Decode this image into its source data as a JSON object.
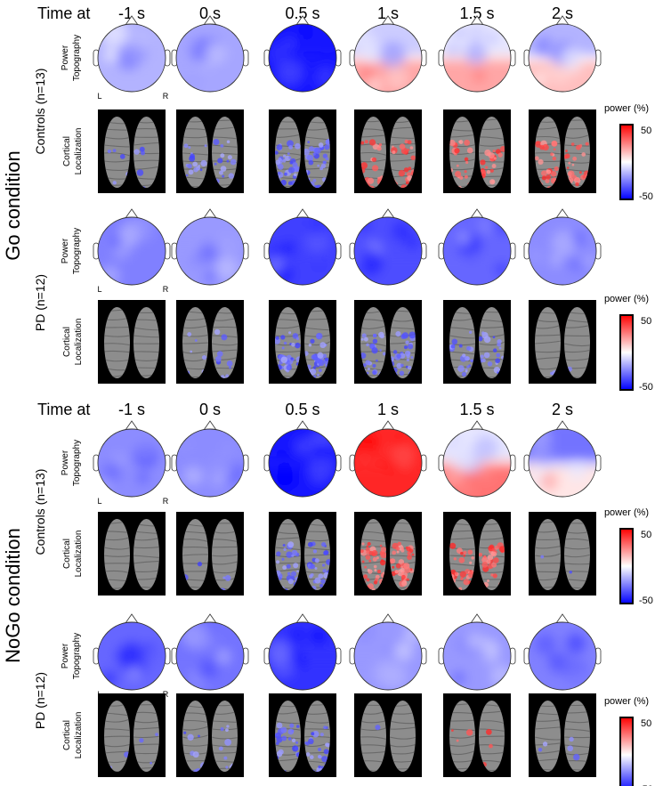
{
  "figure": {
    "time_prefix": "Time at",
    "time_points": [
      "-1 s",
      "0 s",
      "0.5 s",
      "1 s",
      "1.5 s",
      "2 s"
    ],
    "row_labels": {
      "power": [
        "Power",
        "Topography"
      ],
      "cortical": [
        "Cortical",
        "Localization"
      ]
    },
    "hemisphere_labels": {
      "left": "L",
      "right": "R"
    },
    "colorbar": {
      "title": "power (%)",
      "max_label": "50",
      "min_label": "-50",
      "colors": {
        "max": "#ff0000",
        "mid": "#ffffff",
        "min": "#0000ff",
        "frame": "#000000"
      }
    },
    "conditions": [
      {
        "name": "Go condition",
        "groups": [
          {
            "name": "Controls (n=13)",
            "show_lr": true,
            "topo": [
              -0.3,
              -0.35,
              -0.9,
              [
                -0.2,
                0.35
              ],
              [
                -0.1,
                0.35
              ],
              [
                -0.3,
                0.25
              ]
            ],
            "cortical": [
              0.1,
              0.3,
              0.65,
              [
                0.5,
                0.3
              ],
              0.45,
              0.5
            ],
            "cortical_sign": [
              -1,
              -1,
              -1,
              1,
              1,
              1
            ]
          },
          {
            "name": "PD (n=12)",
            "show_lr": true,
            "topo": [
              -0.5,
              -0.4,
              -0.75,
              -0.7,
              -0.6,
              -0.45
            ],
            "cortical": [
              0.0,
              0.15,
              0.55,
              0.55,
              0.35,
              0.05
            ],
            "cortical_sign": [
              -1,
              -1,
              -1,
              -1,
              -1,
              -1
            ]
          }
        ]
      },
      {
        "name": "NoGo condition",
        "groups": [
          {
            "name": "Controls (n=13)",
            "show_lr": true,
            "topo": [
              -0.45,
              -0.45,
              -0.9,
              0.85,
              [
                -0.1,
                0.55
              ],
              [
                -0.55,
                0.1
              ]
            ],
            "cortical": [
              0.0,
              0.05,
              0.55,
              0.7,
              0.5,
              0.02
            ],
            "cortical_sign": [
              -1,
              -1,
              -1,
              1,
              1,
              -1
            ]
          },
          {
            "name": "PD (n=12)",
            "show_lr": true,
            "topo": [
              -0.6,
              -0.55,
              -0.8,
              -0.4,
              -0.4,
              -0.5
            ],
            "cortical": [
              0.05,
              0.15,
              0.45,
              0.02,
              0.05,
              0.05
            ],
            "cortical_sign": [
              -1,
              -1,
              -1,
              -1,
              1,
              -1
            ]
          }
        ]
      }
    ]
  }
}
